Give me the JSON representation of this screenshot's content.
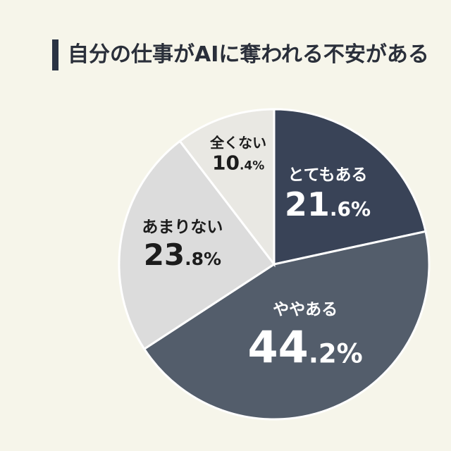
{
  "title": "自分の仕事がAIに奪われる不安がある",
  "chart_data": {
    "type": "pie",
    "title": "自分の仕事がAIに奪われる不安がある",
    "slices": [
      {
        "label": "とてもある",
        "value": 21.6,
        "color": "#394357",
        "text_color": "#ffffff"
      },
      {
        "label": "ややある",
        "value": 44.2,
        "color": "#535d6b",
        "text_color": "#ffffff"
      },
      {
        "label": "あまりない",
        "value": 23.8,
        "color": "#dcdcdc",
        "text_color": "#1c1c1c"
      },
      {
        "label": "全くない",
        "value": 10.4,
        "color": "#e9e8e3",
        "text_color": "#1c1c1c"
      }
    ],
    "start_angle_deg": 0,
    "direction": "clockwise"
  }
}
